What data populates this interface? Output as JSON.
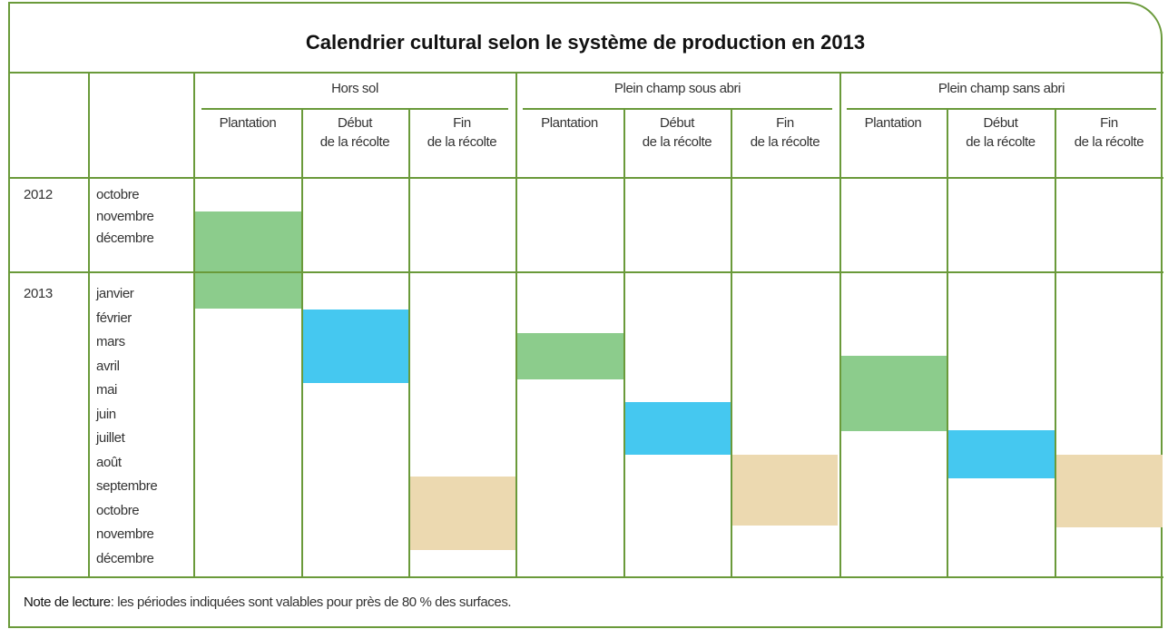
{
  "title": "Calendrier cultural selon le système de production en 2013",
  "groups": [
    {
      "label": "Hors sol",
      "columns": [
        [
          "Plantation"
        ],
        [
          "Début",
          "de la récolte"
        ],
        [
          "Fin",
          "de la récolte"
        ]
      ]
    },
    {
      "label": "Plein champ sous abri",
      "columns": [
        [
          "Plantation"
        ],
        [
          "Début",
          "de la récolte"
        ],
        [
          "Fin",
          "de la récolte"
        ]
      ]
    },
    {
      "label": "Plein champ sans abri",
      "columns": [
        [
          "Plantation"
        ],
        [
          "Début",
          "de la récolte"
        ],
        [
          "Fin",
          "de la récolte"
        ]
      ]
    }
  ],
  "years": [
    {
      "year": "2012",
      "months": [
        "octobre",
        "novembre",
        "décembre"
      ]
    },
    {
      "year": "2013",
      "months": [
        "janvier",
        "février",
        "mars",
        "avril",
        "mai",
        "juin",
        "juillet",
        "août",
        "septembre",
        "octobre",
        "novembre",
        "décembre"
      ]
    }
  ],
  "note": {
    "label": "Note de lecture",
    "text": ": les périodes indiquées sont valables pour près de 80 % des surfaces."
  }
}
